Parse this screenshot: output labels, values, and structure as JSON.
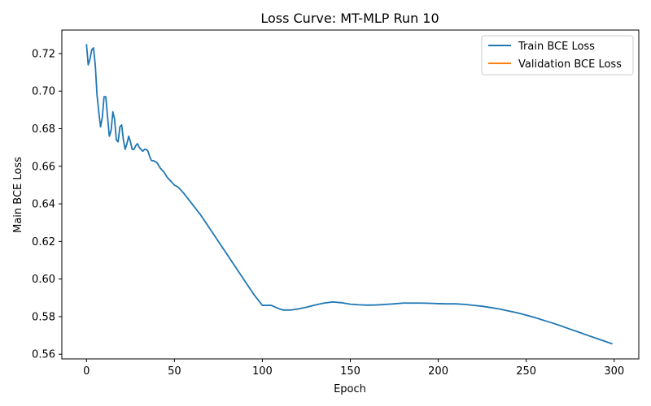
{
  "chart_data": {
    "type": "line",
    "title": "Loss Curve: MT-MLP Run 10",
    "xlabel": "Epoch",
    "ylabel": "Main BCE Loss",
    "xlim": [
      -14,
      314
    ],
    "ylim": [
      0.5575,
      0.7325
    ],
    "xticks": [
      0,
      50,
      100,
      150,
      200,
      250,
      300
    ],
    "yticks": [
      0.56,
      0.58,
      0.6,
      0.62,
      0.64,
      0.66,
      0.68,
      0.7,
      0.72
    ],
    "ytick_labels": [
      "0.56",
      "0.58",
      "0.60",
      "0.62",
      "0.64",
      "0.66",
      "0.68",
      "0.70",
      "0.72"
    ],
    "grid": false,
    "legend_position": "top-right",
    "series": [
      {
        "name": "Train BCE Loss",
        "color": "#1f77b4",
        "x": [
          0,
          1,
          2,
          3,
          4,
          5,
          6,
          7,
          8,
          9,
          10,
          11,
          12,
          13,
          14,
          15,
          16,
          17,
          18,
          19,
          20,
          21,
          22,
          23,
          24,
          25,
          26,
          27,
          28,
          29,
          30,
          31,
          32,
          33,
          34,
          35,
          36,
          37,
          38,
          40,
          42,
          44,
          46,
          48,
          50,
          52,
          55,
          60,
          65,
          70,
          75,
          80,
          85,
          90,
          95,
          100,
          105,
          110,
          112,
          114,
          116,
          118,
          120,
          125,
          130,
          135,
          140,
          145,
          150,
          155,
          160,
          165,
          170,
          175,
          180,
          185,
          190,
          195,
          200,
          205,
          210,
          215,
          220,
          225,
          230,
          235,
          240,
          245,
          250,
          255,
          260,
          265,
          270,
          275,
          280,
          285,
          290,
          295,
          299
        ],
        "y": [
          0.725,
          0.714,
          0.717,
          0.722,
          0.723,
          0.714,
          0.698,
          0.689,
          0.681,
          0.686,
          0.697,
          0.697,
          0.686,
          0.676,
          0.679,
          0.689,
          0.685,
          0.674,
          0.673,
          0.681,
          0.682,
          0.674,
          0.669,
          0.672,
          0.676,
          0.673,
          0.669,
          0.669,
          0.671,
          0.672,
          0.67,
          0.669,
          0.668,
          0.669,
          0.669,
          0.668,
          0.665,
          0.663,
          0.663,
          0.662,
          0.659,
          0.657,
          0.654,
          0.652,
          0.65,
          0.649,
          0.646,
          0.64,
          0.634,
          0.627,
          0.62,
          0.613,
          0.606,
          0.599,
          0.592,
          0.586,
          0.586,
          0.584,
          0.5835,
          0.5835,
          0.5835,
          0.5838,
          0.584,
          0.585,
          0.5862,
          0.5872,
          0.5878,
          0.5874,
          0.5866,
          0.5863,
          0.5861,
          0.5862,
          0.5865,
          0.5868,
          0.5872,
          0.5872,
          0.5872,
          0.5871,
          0.5869,
          0.5868,
          0.5868,
          0.5865,
          0.586,
          0.5855,
          0.5848,
          0.584,
          0.583,
          0.582,
          0.5808,
          0.5795,
          0.578,
          0.5766,
          0.575,
          0.5733,
          0.5717,
          0.57,
          0.5684,
          0.5668,
          0.5655
        ]
      },
      {
        "name": "Validation BCE Loss",
        "color": "#ff7f0e",
        "x": [],
        "y": []
      }
    ]
  }
}
